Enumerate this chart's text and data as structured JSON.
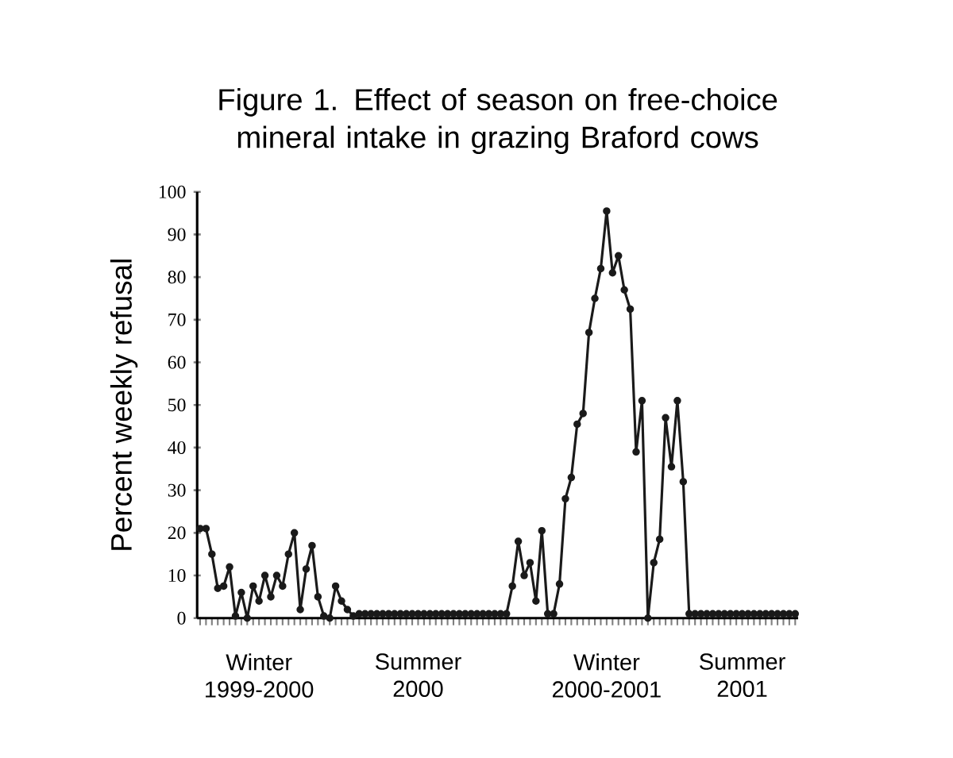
{
  "chart_data": {
    "type": "line",
    "title": "Figure 1. Effect of season on free-choice mineral intake in grazing Braford cows",
    "ylabel": "Percent weekly refusal",
    "categories": [
      null,
      null,
      null,
      null,
      null,
      null,
      null,
      null,
      null,
      null,
      "Winter 1999-2000",
      null,
      null,
      null,
      null,
      null,
      null,
      null,
      null,
      null,
      null,
      null,
      null,
      null,
      null,
      null,
      null,
      null,
      null,
      null,
      null,
      null,
      null,
      null,
      null,
      null,
      null,
      "Summer 2000",
      null,
      null,
      null,
      null,
      null,
      null,
      null,
      null,
      null,
      null,
      null,
      null,
      null,
      null,
      null,
      null,
      null,
      null,
      null,
      null,
      null,
      null,
      null,
      null,
      null,
      null,
      null,
      null,
      null,
      null,
      null,
      "Winter 2000-2001",
      null,
      null,
      null,
      null,
      null,
      null,
      null,
      null,
      null,
      null,
      null,
      null,
      null,
      null,
      null,
      null,
      null,
      null,
      null,
      null,
      null,
      null,
      "Summer 2001",
      null,
      null,
      null,
      null,
      null,
      null,
      null,
      null,
      null
    ],
    "series": [
      {
        "color": "#1a1a1a",
        "values": [
          21,
          21,
          15,
          7,
          7.5,
          12,
          0.5,
          6,
          0,
          7.5,
          4,
          10,
          5,
          10,
          7.5,
          15,
          20,
          2,
          11.5,
          17,
          5,
          0.5,
          0,
          7.5,
          4,
          2,
          0.5,
          1,
          1,
          1,
          1,
          1,
          1,
          1,
          1,
          1,
          1,
          1,
          1,
          1,
          1,
          1,
          1,
          1,
          1,
          1,
          1,
          1,
          1,
          1,
          1,
          1,
          1,
          7.5,
          18,
          10,
          13,
          4,
          20.5,
          1,
          1,
          8,
          28,
          33,
          45.5,
          48,
          67,
          75,
          82,
          95.5,
          81,
          85,
          77,
          72.5,
          39,
          51,
          0,
          13,
          18.5,
          47,
          35.5,
          51,
          32,
          1,
          1,
          1,
          1,
          1,
          1,
          1,
          1,
          1,
          1,
          1,
          1,
          1,
          1,
          1,
          1,
          1,
          1,
          1
        ]
      }
    ],
    "ylim": [
      0,
      100
    ],
    "yticks": [
      0,
      10,
      20,
      30,
      40,
      50,
      60,
      70,
      80,
      90,
      100
    ],
    "grid": false,
    "marker": "circle",
    "line_style": "solid"
  }
}
